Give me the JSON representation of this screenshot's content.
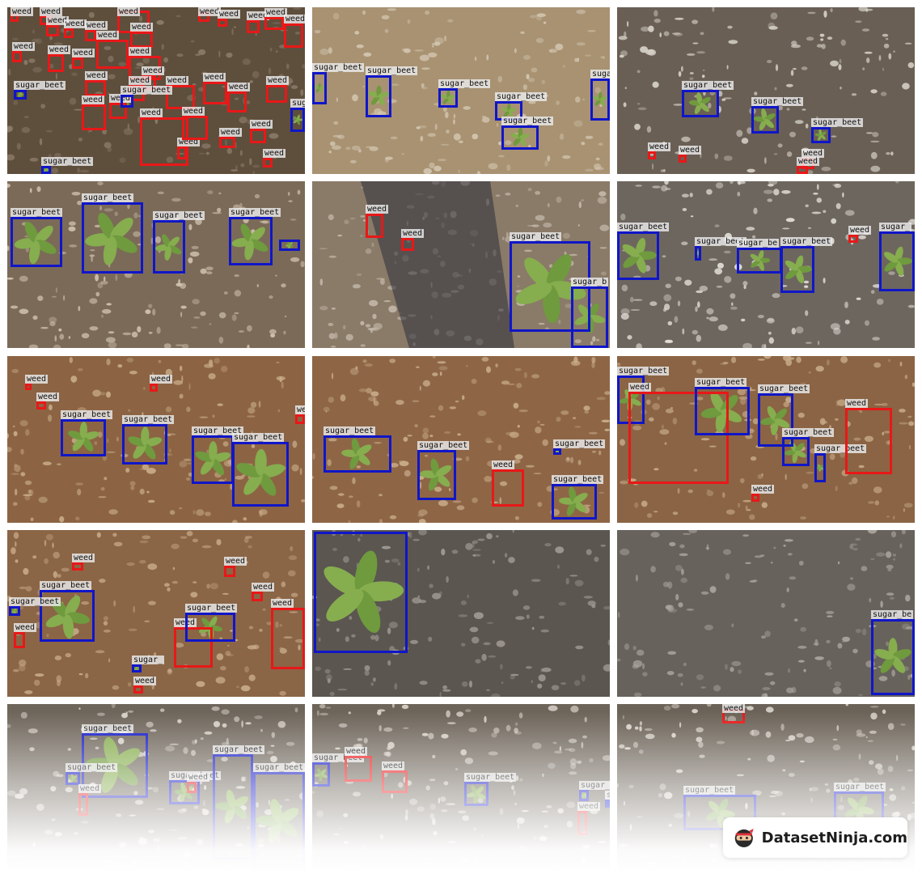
{
  "colors": {
    "weed": "#e81818",
    "sugar_beet": "#1016c8"
  },
  "tiles": [
    {
      "soil": "#5e4e3c",
      "dots": "#8a7a68",
      "boxes": [
        {
          "c": "weed",
          "l": "weed"
        },
        {
          "c": "weed",
          "l": "weed"
        },
        {
          "c": "weed",
          "l": "weed"
        },
        {
          "c": "weed",
          "l": "weed"
        },
        {
          "c": "weed",
          "l": "weed"
        },
        {
          "c": "weed",
          "l": "weed"
        },
        {
          "c": "weed",
          "l": "weed"
        },
        {
          "c": "weed",
          "l": "weed"
        },
        {
          "c": "weed",
          "l": "weed"
        },
        {
          "c": "weed",
          "l": "weed"
        },
        {
          "c": "weed",
          "l": "weed"
        },
        {
          "c": "weed",
          "l": "weed"
        },
        {
          "c": "weed",
          "l": "weed"
        },
        {
          "c": "weed",
          "l": "weed"
        },
        {
          "c": "weed",
          "l": "weed"
        },
        {
          "c": "weed",
          "l": "weed"
        },
        {
          "c": "weed",
          "l": "weed"
        },
        {
          "c": "weed",
          "l": "weed"
        },
        {
          "c": "weed",
          "l": "weed"
        },
        {
          "c": "weed",
          "l": "weed"
        },
        {
          "c": "weed",
          "l": "weed"
        },
        {
          "c": "weed",
          "l": "weed"
        },
        {
          "c": "weed",
          "l": "weed"
        },
        {
          "c": "weed",
          "l": "weed"
        },
        {
          "c": "weed",
          "l": "weed"
        },
        {
          "c": "weed",
          "l": "weed"
        },
        {
          "c": "weed",
          "l": "weed"
        },
        {
          "c": "weed",
          "l": "weed"
        },
        {
          "c": "weed",
          "l": "weed"
        },
        {
          "c": "weed",
          "l": "weed"
        },
        {
          "c": "weed",
          "l": "weed"
        },
        {
          "c": "weed",
          "l": "weed"
        },
        {
          "c": "sugar_beet",
          "l": "sugar_beet"
        },
        {
          "c": "sugar_beet",
          "l": "sugar_beet"
        },
        {
          "c": "sugar_beet",
          "l": "sugar_beet"
        },
        {
          "c": "sugar_beet",
          "l": "sugar_beet"
        }
      ]
    },
    {
      "soil": "#a89272",
      "dots": "#d3c6b0",
      "boxes": [
        {
          "c": "sugar_beet",
          "l": "sugar_beet"
        },
        {
          "c": "sugar_beet",
          "l": "sugar_beet"
        },
        {
          "c": "sugar_beet",
          "l": "sugar_beet"
        },
        {
          "c": "sugar_beet",
          "l": "sugar_beet"
        },
        {
          "c": "sugar_beet",
          "l": "sugar_beet"
        },
        {
          "c": "sugar_beet",
          "l": "sugar_beet"
        }
      ]
    },
    {
      "soil": "#6a5f54",
      "dots": "#d6d1c8",
      "boxes": [
        {
          "c": "sugar_beet",
          "l": "sugar_beet"
        },
        {
          "c": "sugar_beet",
          "l": "sugar_beet"
        },
        {
          "c": "sugar_beet",
          "l": "sugar_beet"
        },
        {
          "c": "weed",
          "l": "weed"
        },
        {
          "c": "weed",
          "l": "weed"
        },
        {
          "c": "weed",
          "l": "weed"
        },
        {
          "c": "weed",
          "l": "weed"
        }
      ]
    },
    {
      "soil": "#7b6a58",
      "dots": "#cfc2ae",
      "boxes": [
        {
          "c": "sugar_beet",
          "l": "sugar_beet"
        },
        {
          "c": "sugar_beet",
          "l": "sugar_beet"
        },
        {
          "c": "sugar_beet",
          "l": "sugar_beet"
        },
        {
          "c": "sugar_beet",
          "l": "sugar_beet"
        },
        {
          "c": "sugar_beet",
          "l": ""
        }
      ]
    },
    {
      "soil": "#8a7a68",
      "dots": "#c2b7a8",
      "shadow": true,
      "boxes": [
        {
          "c": "weed",
          "l": "weed"
        },
        {
          "c": "weed",
          "l": "weed"
        },
        {
          "c": "sugar_beet",
          "l": "sugar_beet"
        },
        {
          "c": "sugar_beet",
          "l": "sugar_b"
        }
      ]
    },
    {
      "soil": "#6d665e",
      "dots": "#e4e0da",
      "boxes": [
        {
          "c": "sugar_beet",
          "l": "sugar_beet"
        },
        {
          "c": "sugar_beet",
          "l": "sugar_beet"
        },
        {
          "c": "sugar_beet",
          "l": "sugar_be"
        },
        {
          "c": "sugar_beet",
          "l": "sugar_beet"
        },
        {
          "c": "weed",
          "l": "weed"
        },
        {
          "c": "sugar_beet",
          "l": "sugar_"
        }
      ]
    },
    {
      "soil": "#8c6444",
      "dots": "#c8ab88",
      "boxes": [
        {
          "c": "weed",
          "l": "weed"
        },
        {
          "c": "weed",
          "l": "weed"
        },
        {
          "c": "weed",
          "l": "weed"
        },
        {
          "c": "weed",
          "l": "we"
        },
        {
          "c": "sugar_beet",
          "l": "sugar_beet"
        },
        {
          "c": "sugar_beet",
          "l": "sugar_beet"
        },
        {
          "c": "sugar_beet",
          "l": "sugar_beet"
        },
        {
          "c": "sugar_beet",
          "l": "sugar_beet"
        }
      ]
    },
    {
      "soil": "#8e6646",
      "dots": "#c9ad8b",
      "boxes": [
        {
          "c": "sugar_beet",
          "l": "sugar_beet"
        },
        {
          "c": "sugar_beet",
          "l": "sugar_beet"
        },
        {
          "c": "weed",
          "l": "weed"
        },
        {
          "c": "sugar_beet",
          "l": "sugar_beet"
        },
        {
          "c": "sugar_beet",
          "l": "sugar_beet"
        }
      ]
    },
    {
      "soil": "#8a6444",
      "dots": "#c6a987",
      "boxes": [
        {
          "c": "sugar_beet",
          "l": "sugar_beet"
        },
        {
          "c": "weed",
          "l": "weed"
        },
        {
          "c": "sugar_beet",
          "l": "sugar_beet"
        },
        {
          "c": "sugar_beet",
          "l": "sugar_beet"
        },
        {
          "c": "sugar_beet",
          "l": "sugar_beet"
        },
        {
          "c": "sugar_beet",
          "l": "sugar_beet"
        },
        {
          "c": "weed",
          "l": "weed"
        },
        {
          "c": "weed",
          "l": "weed"
        }
      ]
    },
    {
      "soil": "#8a6546",
      "dots": "#c7aa88",
      "boxes": [
        {
          "c": "weed",
          "l": "weed"
        },
        {
          "c": "weed",
          "l": "weed"
        },
        {
          "c": "weed",
          "l": "weed"
        },
        {
          "c": "sugar_beet",
          "l": "sugar_beet"
        },
        {
          "c": "sugar_beet",
          "l": "sugar_beet"
        },
        {
          "c": "weed",
          "l": "weed"
        },
        {
          "c": "sugar_beet",
          "l": "sugar_beet"
        },
        {
          "c": "weed",
          "l": "weed"
        },
        {
          "c": "sugar_beet",
          "l": "sugar_"
        },
        {
          "c": "weed",
          "l": "weed"
        },
        {
          "c": "weed",
          "l": "weed"
        }
      ]
    },
    {
      "soil": "#5b5650",
      "dots": "#9f9a92",
      "boxes": [
        {
          "c": "sugar_beet",
          "l": ""
        }
      ]
    },
    {
      "soil": "#67625b",
      "dots": "#a9a49c",
      "boxes": [
        {
          "c": "sugar_beet",
          "l": "sugar_be"
        }
      ]
    },
    {
      "soil": "#6f665b",
      "dots": "#d9d4cc",
      "boxes": [
        {
          "c": "sugar_beet",
          "l": "sugar_beet"
        },
        {
          "c": "sugar_beet",
          "l": "sugar_beet"
        },
        {
          "c": "sugar_beet",
          "l": "sugar_beet"
        },
        {
          "c": "sugar_beet",
          "l": "sugar_beet"
        },
        {
          "c": "sugar_beet",
          "l": "sugar_beet"
        },
        {
          "c": "weed",
          "l": "weed"
        },
        {
          "c": "weed",
          "l": "weed"
        },
        {
          "c": "weed",
          "l": "weed"
        }
      ]
    },
    {
      "soil": "#6e655a",
      "dots": "#d8d2c9",
      "boxes": [
        {
          "c": "sugar_beet",
          "l": "sugar_beet"
        },
        {
          "c": "weed",
          "l": "weed"
        },
        {
          "c": "weed",
          "l": "weed"
        },
        {
          "c": "sugar_beet",
          "l": "sugar_beet"
        },
        {
          "c": "sugar_beet",
          "l": "sugar_beet"
        },
        {
          "c": "weed",
          "l": "weed"
        },
        {
          "c": "sugar_beet",
          "l": "sugar_"
        }
      ]
    },
    {
      "soil": "#6c6358",
      "dots": "#dad5cc",
      "boxes": [
        {
          "c": "weed",
          "l": "weed"
        },
        {
          "c": "sugar_beet",
          "l": "sugar_beet"
        },
        {
          "c": "sugar_beet",
          "l": "sugar_beet"
        }
      ]
    }
  ],
  "brand": {
    "name": "DatasetNinja.com"
  }
}
